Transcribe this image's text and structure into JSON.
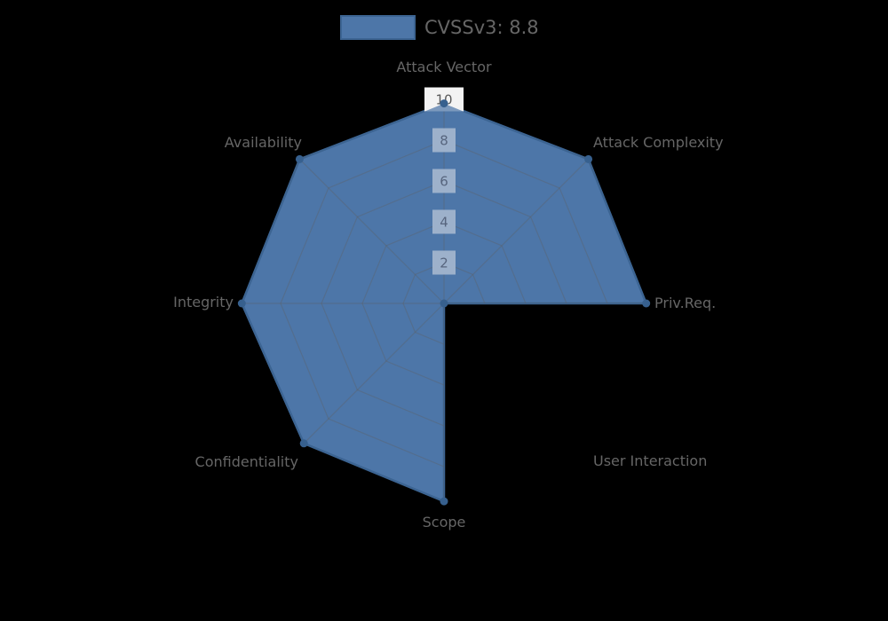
{
  "legend": {
    "label": "CVSSv3: 8.8"
  },
  "chart_data": {
    "type": "radar",
    "title": "CVSSv3: 8.8",
    "categories": [
      "Attack Vector",
      "Attack Complexity",
      "Priv.Req.",
      "User Interaction",
      "Scope",
      "Confidentiality",
      "Integrity",
      "Availability"
    ],
    "series": [
      {
        "name": "CVSSv3: 8.8",
        "values": [
          9.8,
          10,
          9.9,
          0,
          9.7,
          9.7,
          9.9,
          10
        ]
      }
    ],
    "radial_ticks": [
      2,
      4,
      6,
      8,
      10
    ],
    "axis_range": [
      0,
      10
    ],
    "grid": true,
    "legend_position": "top"
  },
  "colors": {
    "background": "#000000",
    "series_fill": "#4d76a8",
    "series_border": "#3c6492",
    "point_marker": "#37608e",
    "grid_line": "rgba(95,95,95,0.35)",
    "axis_label": "#666666",
    "tick_text_outside": "#5a5a5a",
    "tick_text_inside": "#57657e",
    "tick_backdrop_outside": "#f3f3f3",
    "tick_backdrop_inside": "#9db1cb"
  }
}
